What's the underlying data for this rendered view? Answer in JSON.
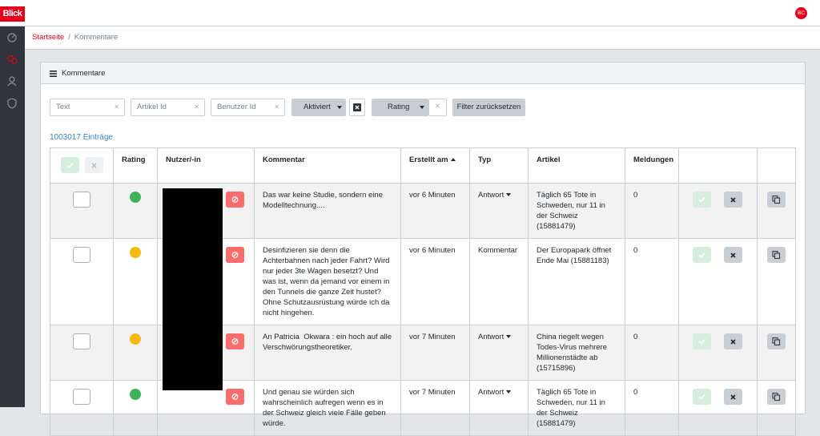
{
  "header": {
    "logo": "Blick",
    "avatar": "BC"
  },
  "breadcrumb": {
    "home": "Startseite",
    "separator": "/",
    "current": "Kommentare"
  },
  "card": {
    "title": "Kommentare"
  },
  "filters": {
    "text": "Text",
    "article_id": "Artikel Id",
    "user_id": "Benutzer Id",
    "activated": "Aktiviert",
    "rating": "Rating",
    "reset": "Filter zurücksetzen"
  },
  "entry_count": "1003017 Einträge",
  "table": {
    "columns": [
      "Rating",
      "Nutzer/-in",
      "Kommentar",
      "Erstellt am",
      "Typ",
      "Artikel",
      "Meldungen"
    ],
    "sorted_column": 3,
    "rows": [
      {
        "rating_color": "#3fb35a",
        "comment": "Das war keine Studie, sondern eine Modelltechnung....",
        "created": "vor 6 Minuten",
        "type": "Antwort",
        "type_dropdown": true,
        "article": "Täglich 65 Tote in Schweden, nur 11 in der Schweiz (15881479)",
        "reports": 0
      },
      {
        "rating_color": "#f5b914",
        "comment": "Desinfizieren sie denn die Achterbahnen nach jeder Fahrt? Wird nur jeder 3te Wagen besetzt? Und was ist, wenn da jemand vor einem in den Tunnels die ganze Zeit hustet? Ohne Schutzausrüstung würde ich da nicht hingehen.",
        "created": "vor 6 Minuten",
        "type": "Kommentar",
        "type_dropdown": false,
        "article": "Der Europapark öffnet Ende Mai (15881183)",
        "reports": 0
      },
      {
        "rating_color": "#f5b914",
        "comment": "An Patricia  Okwara : ein hoch auf alle Verschwörungstheoretiker.",
        "created": "vor 7 Minuten",
        "type": "Antwort",
        "type_dropdown": true,
        "article": "China riegelt wegen Todes-Virus mehrere Millionenstädte ab (15715896)",
        "reports": 0
      },
      {
        "rating_color": "#3fb35a",
        "comment": "Und genau sie würden sich wahrscheinlich aufregen wenn es in der Schweiz gleich viele Fälle geben würde.",
        "created": "vor 7 Minuten",
        "type": "Antwort",
        "type_dropdown": true,
        "article": "Täglich 65 Tote in Schweden, nur 11 in der Schweiz (15881479)",
        "reports": 0
      }
    ]
  }
}
